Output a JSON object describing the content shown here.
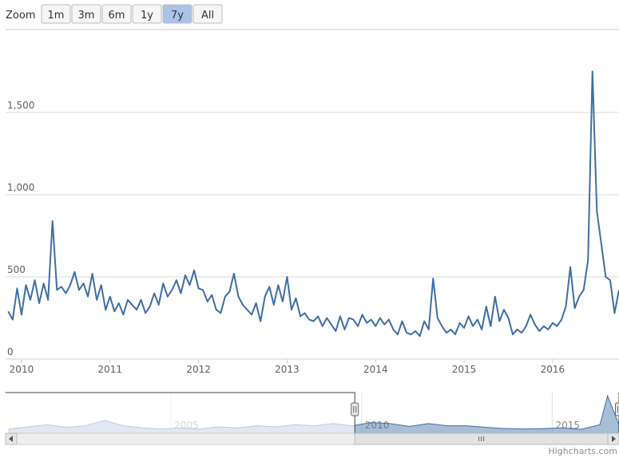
{
  "range_selector": {
    "label": "Zoom",
    "buttons": [
      "1m",
      "3m",
      "6m",
      "1y",
      "7y",
      "All"
    ],
    "selected": 4
  },
  "credits": "Highcharts.com",
  "chart_data": [
    {
      "type": "line",
      "color": "#3d6fa5",
      "grid": true,
      "x": [
        2009.85,
        2009.9,
        2009.95,
        2010.0,
        2010.05,
        2010.1,
        2010.15,
        2010.2,
        2010.25,
        2010.3,
        2010.35,
        2010.4,
        2010.45,
        2010.5,
        2010.55,
        2010.6,
        2010.65,
        2010.7,
        2010.75,
        2010.8,
        2010.85,
        2010.9,
        2010.95,
        2011.0,
        2011.05,
        2011.1,
        2011.15,
        2011.2,
        2011.25,
        2011.3,
        2011.35,
        2011.4,
        2011.45,
        2011.5,
        2011.55,
        2011.6,
        2011.65,
        2011.7,
        2011.75,
        2011.8,
        2011.85,
        2011.9,
        2011.95,
        2012.0,
        2012.05,
        2012.1,
        2012.15,
        2012.2,
        2012.25,
        2012.3,
        2012.35,
        2012.4,
        2012.45,
        2012.5,
        2012.55,
        2012.6,
        2012.65,
        2012.7,
        2012.75,
        2012.8,
        2012.85,
        2012.9,
        2012.95,
        2013.0,
        2013.05,
        2013.1,
        2013.15,
        2013.2,
        2013.25,
        2013.3,
        2013.35,
        2013.4,
        2013.45,
        2013.5,
        2013.55,
        2013.6,
        2013.65,
        2013.7,
        2013.75,
        2013.8,
        2013.85,
        2013.9,
        2013.95,
        2014.0,
        2014.05,
        2014.1,
        2014.15,
        2014.2,
        2014.25,
        2014.3,
        2014.35,
        2014.4,
        2014.45,
        2014.5,
        2014.55,
        2014.6,
        2014.65,
        2014.7,
        2014.75,
        2014.8,
        2014.85,
        2014.9,
        2014.95,
        2015.0,
        2015.05,
        2015.1,
        2015.15,
        2015.2,
        2015.25,
        2015.3,
        2015.35,
        2015.4,
        2015.45,
        2015.5,
        2015.55,
        2015.6,
        2015.65,
        2015.7,
        2015.75,
        2015.8,
        2015.85,
        2015.9,
        2015.95,
        2016.0,
        2016.05,
        2016.1,
        2016.15,
        2016.2,
        2016.25,
        2016.3,
        2016.35,
        2016.4,
        2016.45,
        2016.5,
        2016.55,
        2016.6,
        2016.65,
        2016.7,
        2016.75
      ],
      "values": [
        290,
        240,
        430,
        270,
        450,
        360,
        480,
        340,
        460,
        360,
        840,
        420,
        440,
        400,
        450,
        530,
        420,
        460,
        380,
        520,
        360,
        450,
        300,
        380,
        290,
        340,
        270,
        360,
        330,
        300,
        360,
        280,
        320,
        400,
        330,
        460,
        380,
        420,
        480,
        400,
        510,
        450,
        540,
        430,
        420,
        350,
        390,
        300,
        280,
        380,
        410,
        520,
        380,
        330,
        300,
        270,
        340,
        230,
        380,
        440,
        330,
        450,
        350,
        500,
        300,
        370,
        260,
        280,
        240,
        230,
        260,
        200,
        250,
        210,
        170,
        260,
        180,
        250,
        240,
        200,
        270,
        220,
        240,
        200,
        250,
        210,
        240,
        180,
        150,
        230,
        160,
        150,
        170,
        140,
        230,
        180,
        490,
        250,
        200,
        160,
        180,
        150,
        220,
        190,
        260,
        200,
        240,
        180,
        320,
        200,
        380,
        230,
        300,
        250,
        150,
        180,
        160,
        200,
        270,
        210,
        170,
        200,
        180,
        220,
        200,
        240,
        320,
        560,
        310,
        380,
        420,
        600,
        1750,
        900,
        700,
        500,
        480,
        280,
        420
      ],
      "xlim": [
        2009.82,
        2016.75
      ],
      "xticks": [
        2010,
        2011,
        2012,
        2013,
        2014,
        2015,
        2016
      ],
      "ylim": [
        0,
        2000
      ],
      "yticks": [
        0,
        500,
        {
          "value": 1000,
          "label": "1,000"
        },
        {
          "value": 1500,
          "label": "1,500"
        }
      ]
    },
    {
      "type": "area",
      "color": "#3d6fa5",
      "x": [
        2000.75,
        2001.25,
        2001.75,
        2002.25,
        2002.75,
        2003.25,
        2003.75,
        2004.25,
        2004.75,
        2005.25,
        2005.75,
        2006.25,
        2006.75,
        2007.25,
        2007.75,
        2008.25,
        2008.75,
        2009.25,
        2009.75,
        2010.25,
        2010.75,
        2011.25,
        2011.75,
        2012.25,
        2012.75,
        2013.25,
        2013.75,
        2014.25,
        2014.75,
        2015.25,
        2015.75,
        2016.25,
        2016.45,
        2016.75
      ],
      "values": [
        200,
        300,
        400,
        280,
        350,
        600,
        350,
        250,
        200,
        250,
        200,
        300,
        250,
        350,
        300,
        400,
        350,
        450,
        350,
        500,
        450,
        320,
        450,
        350,
        350,
        280,
        220,
        200,
        220,
        250,
        180,
        400,
        1750,
        400
      ],
      "xlim": [
        2000.66,
        2016.75
      ],
      "xticks": [
        2005,
        2010,
        2015
      ],
      "ylim": [
        0,
        1900
      ]
    }
  ]
}
